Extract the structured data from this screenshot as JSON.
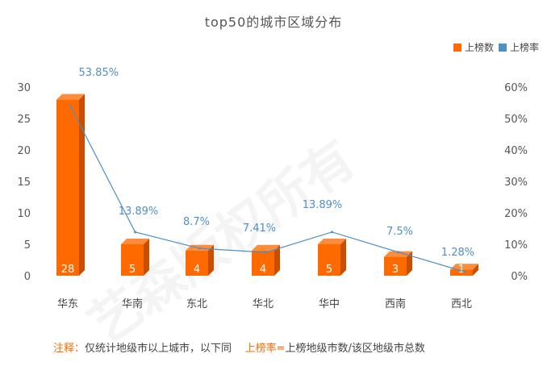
{
  "chart_data": {
    "type": "bar",
    "title": "top50的城市区域分布",
    "categories": [
      "华东",
      "华南",
      "东北",
      "华北",
      "华中",
      "西南",
      "西北"
    ],
    "series": [
      {
        "name": "上榜数",
        "type": "bar",
        "axis": "left",
        "values": [
          28,
          5,
          4,
          4,
          5,
          3,
          1
        ]
      },
      {
        "name": "上榜率",
        "type": "line",
        "axis": "right",
        "values": [
          53.85,
          13.89,
          8.7,
          7.41,
          13.89,
          7.5,
          1.28
        ],
        "labels": [
          "53.85%",
          "13.89%",
          "8.7%",
          "7.41%",
          "13.89%",
          "7.5%",
          "1.28%"
        ]
      }
    ],
    "y_left": {
      "range": [
        0,
        30
      ],
      "ticks": [
        "0",
        "5",
        "10",
        "15",
        "20",
        "25",
        "30"
      ]
    },
    "y_right": {
      "range": [
        0,
        60
      ],
      "ticks": [
        "0%",
        "10%",
        "20%",
        "30%",
        "40%",
        "50%",
        "60%"
      ]
    },
    "legend_position": "top-right",
    "grid": false
  },
  "colors": {
    "bar": "#ff6a00",
    "bar_side": "#c94f00",
    "bar_top": "#ff8c3a",
    "line": "#4f8fc8",
    "label": "#4f8fc8"
  },
  "legend": {
    "bar_label": "上榜数",
    "line_label": "上榜率"
  },
  "footnote": {
    "note_label": "注释：",
    "note_text": "仅统计地级市以上城市，以下同",
    "rate_label": "上榜率=",
    "rate_text": "上榜地级市数/该区地级市总数"
  },
  "watermark": "艺森版权所有"
}
